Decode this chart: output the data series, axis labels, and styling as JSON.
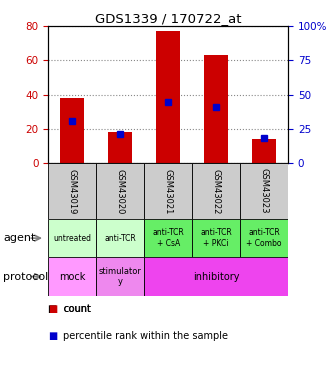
{
  "title": "GDS1339 / 170722_at",
  "samples": [
    "GSM43019",
    "GSM43020",
    "GSM43021",
    "GSM43022",
    "GSM43023"
  ],
  "counts": [
    38,
    18,
    77,
    63,
    14
  ],
  "percentile_ranks": [
    31,
    21,
    45,
    41,
    18
  ],
  "left_ylim": [
    0,
    80
  ],
  "right_ylim": [
    0,
    100
  ],
  "left_yticks": [
    0,
    20,
    40,
    60,
    80
  ],
  "right_yticks": [
    0,
    25,
    50,
    75,
    100
  ],
  "right_yticklabels": [
    "0",
    "25",
    "50",
    "75",
    "100%"
  ],
  "bar_color": "#cc0000",
  "marker_color": "#0000cc",
  "agent_labels": [
    "untreated",
    "anti-TCR",
    "anti-TCR\n+ CsA",
    "anti-TCR\n+ PKCi",
    "anti-TCR\n+ Combo"
  ],
  "agent_bg_light": "#ccffcc",
  "agent_bg_dark": "#66ee66",
  "protocol_mock_bg": "#ff99ff",
  "protocol_stim_bg": "#ee88ee",
  "protocol_inhib_bg": "#ee44ee",
  "sample_bg": "#cccccc",
  "legend_count_color": "#cc0000",
  "legend_pct_color": "#0000cc",
  "gridline_color": "#888888",
  "left_tick_color": "#cc0000",
  "right_tick_color": "#0000cc"
}
